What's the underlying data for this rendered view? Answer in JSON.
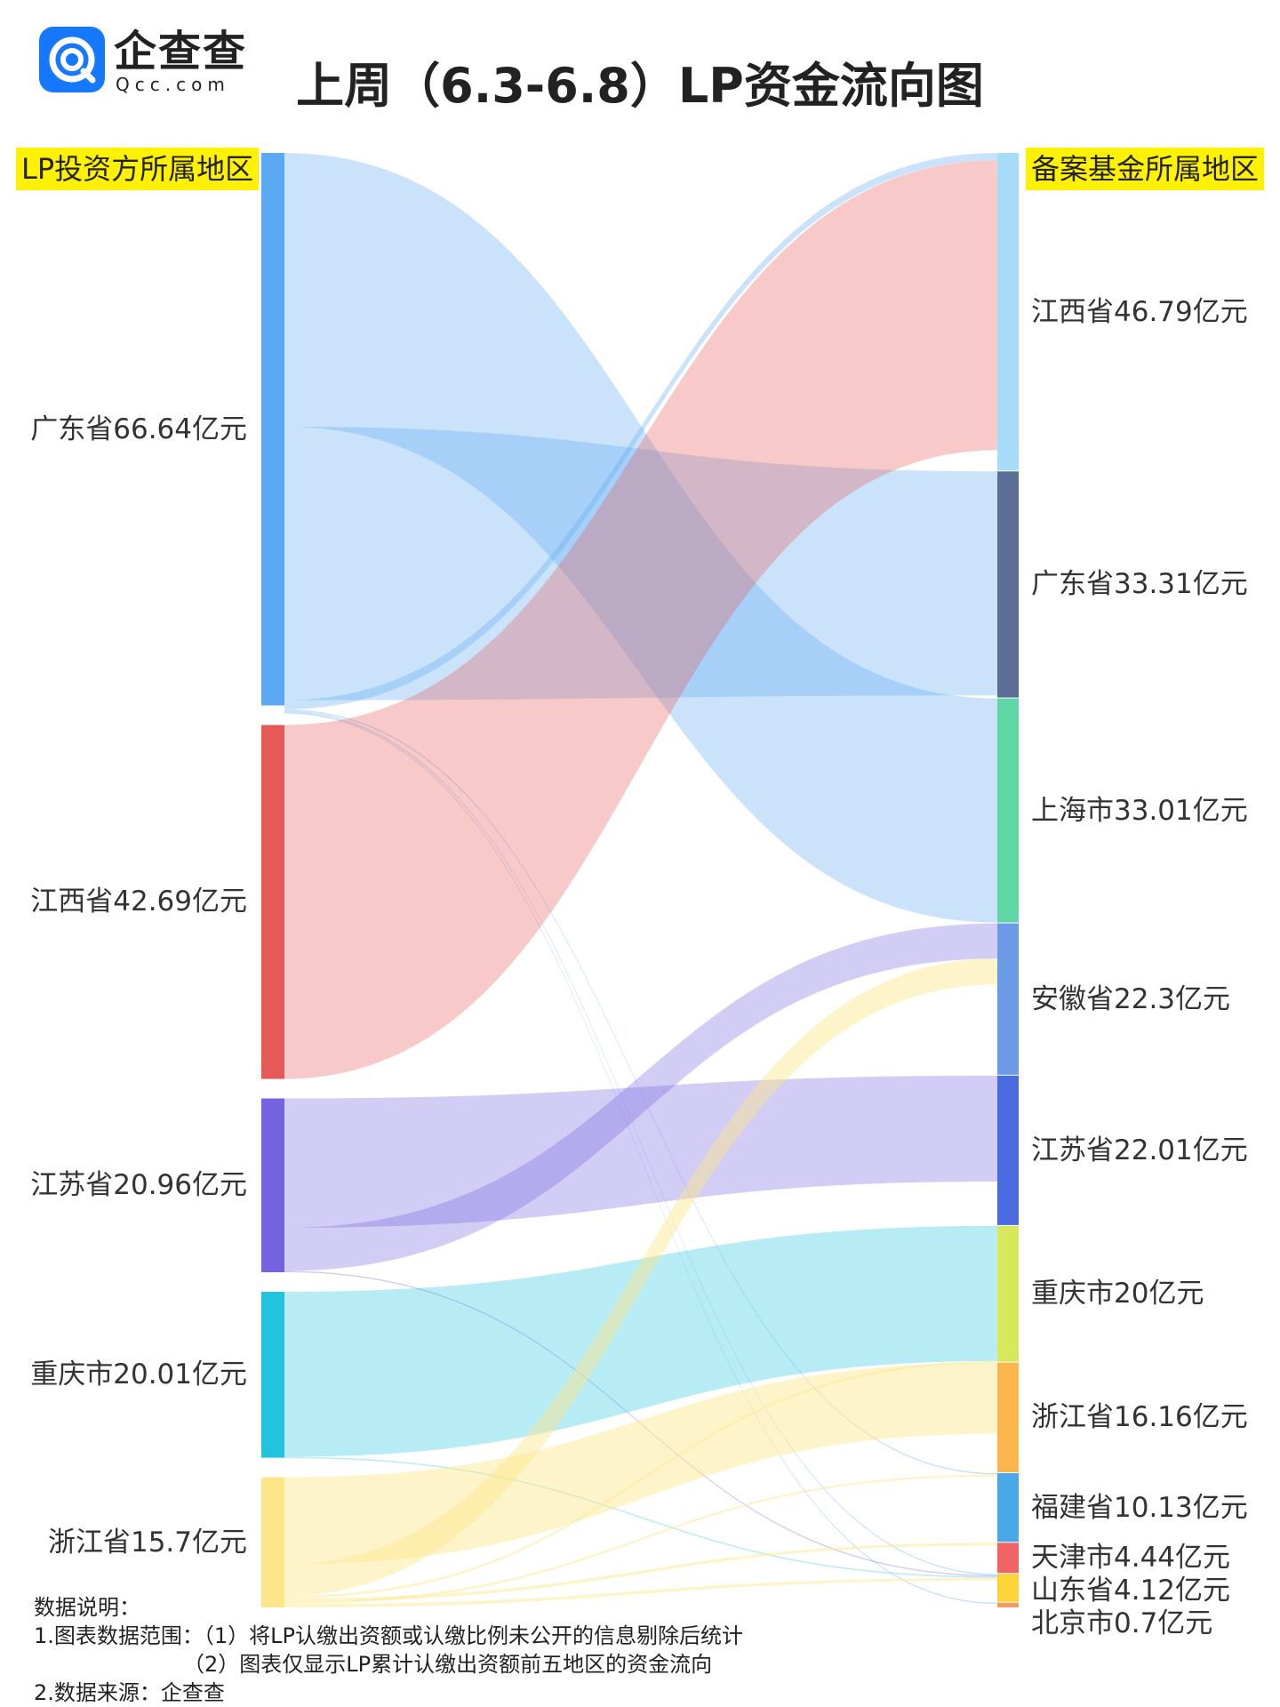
{
  "logo": {
    "name": "企查查",
    "domain": "Qcc.com"
  },
  "title": "上周（6.3-6.8）LP资金流向图",
  "headers": {
    "left": "LP投资方所属地区",
    "right": "备案基金所属地区"
  },
  "chart_data": {
    "type": "sankey",
    "sources": [
      {
        "id": "gd_src",
        "label": "广东省66.64亿元",
        "name": "广东省",
        "value": 66.64,
        "color": "#5aa9f2"
      },
      {
        "id": "jx_src",
        "label": "江西省42.69亿元",
        "name": "江西省",
        "value": 42.69,
        "color": "#e55a57"
      },
      {
        "id": "js_src",
        "label": "江苏省20.96亿元",
        "name": "江苏省",
        "value": 20.96,
        "color": "#7462e0"
      },
      {
        "id": "cq_src",
        "label": "重庆市20.01亿元",
        "name": "重庆市",
        "value": 20.01,
        "color": "#22c3dc"
      },
      {
        "id": "zj_src",
        "label": "浙江省15.7亿元",
        "name": "浙江省",
        "value": 15.7,
        "color": "#fde68a"
      }
    ],
    "targets": [
      {
        "id": "jx_t",
        "label": "江西省46.79亿元",
        "name": "江西省",
        "value": 46.79,
        "color": "#a6dcf7"
      },
      {
        "id": "gd_t",
        "label": "广东省33.31亿元",
        "name": "广东省",
        "value": 33.31,
        "color": "#5b6f96"
      },
      {
        "id": "sh_t",
        "label": "上海市33.01亿元",
        "name": "上海市",
        "value": 33.01,
        "color": "#5ed7a5"
      },
      {
        "id": "ah_t",
        "label": "安徽省22.3亿元",
        "name": "安徽省",
        "value": 22.3,
        "color": "#6b9ae6"
      },
      {
        "id": "js_t",
        "label": "江苏省22.01亿元",
        "name": "江苏省",
        "value": 22.01,
        "color": "#4a6bdf"
      },
      {
        "id": "cq_t",
        "label": "重庆市20亿元",
        "name": "重庆市",
        "value": 20,
        "color": "#d7e95a"
      },
      {
        "id": "zj_t",
        "label": "浙江省16.16亿元",
        "name": "浙江省",
        "value": 16.16,
        "color": "#fcb64e"
      },
      {
        "id": "fj_t",
        "label": "福建省10.13亿元",
        "name": "福建省",
        "value": 10.13,
        "color": "#4aa8e8"
      },
      {
        "id": "tj_t",
        "label": "天津市4.44亿元",
        "name": "天津市",
        "value": 4.44,
        "color": "#f16466"
      },
      {
        "id": "sd_t",
        "label": "山东省4.12亿元",
        "name": "山东省",
        "value": 4.12,
        "color": "#fcd43a"
      },
      {
        "id": "bj_t",
        "label": "北京市0.7亿元",
        "name": "北京市",
        "value": 0.7,
        "color": "#f39b5c"
      }
    ],
    "links": [
      {
        "source": "gd_src",
        "target": "sh_t",
        "value": 33.01
      },
      {
        "source": "gd_src",
        "target": "gd_t",
        "value": 33.0
      },
      {
        "source": "gd_src",
        "target": "jx_t",
        "value": 1.1
      },
      {
        "source": "gd_src",
        "target": "fj_t",
        "value": 0.2
      },
      {
        "source": "gd_src",
        "target": "sd_t",
        "value": 0.1
      },
      {
        "source": "gd_src",
        "target": "bj_t",
        "value": 0.1
      },
      {
        "source": "jx_src",
        "target": "jx_t",
        "value": 42.69
      },
      {
        "source": "js_src",
        "target": "js_t",
        "value": 15.6
      },
      {
        "source": "js_src",
        "target": "ah_t",
        "value": 5.2
      },
      {
        "source": "js_src",
        "target": "sd_t",
        "value": 0.16
      },
      {
        "source": "cq_src",
        "target": "cq_t",
        "value": 19.9
      },
      {
        "source": "cq_src",
        "target": "sd_t",
        "value": 0.11
      },
      {
        "source": "zj_src",
        "target": "zj_t",
        "value": 10.5
      },
      {
        "source": "zj_src",
        "target": "ah_t",
        "value": 3.8
      },
      {
        "source": "zj_src",
        "target": "cq_t",
        "value": 0.3
      },
      {
        "source": "zj_src",
        "target": "tj_t",
        "value": 0.4
      },
      {
        "source": "zj_src",
        "target": "fj_t",
        "value": 0.3
      },
      {
        "source": "zj_src",
        "target": "sd_t",
        "value": 0.4
      }
    ]
  },
  "notes": [
    "数据说明：",
    "1.图表数据范围：（1）将LP认缴出资额或认缴比例未公开的信息剔除后统计",
    "（2）图表仅显示LP累计认缴出资额前五地区的资金流向",
    "2.数据来源：企查查"
  ]
}
